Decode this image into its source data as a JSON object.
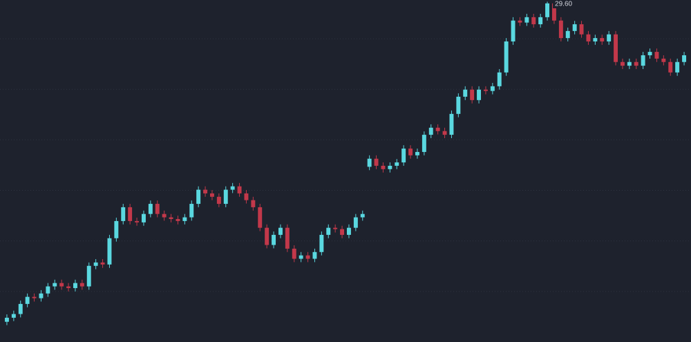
{
  "chart_data": {
    "type": "candlestick",
    "background": "#1e222d",
    "up_color": "#5ad8e0",
    "down_color": "#c2384a",
    "grid": true,
    "grid_color": "#2f3441",
    "ylim": [
      19.5,
      29.65
    ],
    "yticks": [
      21,
      22.5,
      24,
      25.5,
      27,
      28.5
    ],
    "annotation": {
      "value": 29.6,
      "label": "29.60"
    },
    "open": [
      20.1,
      20.22,
      20.33,
      20.63,
      20.84,
      20.8,
      20.94,
      21.15,
      21.25,
      21.15,
      21.1,
      21.25,
      21.15,
      21.76,
      21.86,
      21.8,
      22.58,
      23.09,
      23.5,
      23.09,
      23.05,
      23.3,
      23.6,
      23.3,
      23.2,
      23.15,
      23.09,
      23.2,
      23.6,
      24.02,
      23.91,
      23.81,
      23.6,
      24.02,
      24.12,
      23.91,
      23.71,
      23.5,
      22.89,
      22.38,
      22.68,
      22.89,
      22.27,
      21.97,
      22.07,
      21.97,
      22.17,
      22.68,
      22.89,
      22.85,
      22.68,
      22.89,
      23.2,
      24.7,
      24.94,
      24.73,
      24.63,
      24.73,
      24.83,
      25.24,
      25.04,
      25.14,
      25.65,
      25.86,
      25.76,
      25.65,
      26.27,
      26.78,
      26.99,
      26.68,
      26.99,
      26.95,
      27.09,
      27.5,
      28.42,
      29.04,
      28.98,
      29.14,
      28.93,
      29.14,
      29.55,
      29.04,
      28.52,
      28.73,
      28.93,
      28.63,
      28.42,
      28.52,
      28.42,
      28.63,
      27.81,
      27.7,
      27.81,
      27.7,
      28.01,
      28.11,
      27.91,
      27.81,
      27.5,
      27.81
    ],
    "high": [
      20.32,
      20.43,
      20.73,
      20.94,
      20.94,
      21.04,
      21.25,
      21.35,
      21.35,
      21.25,
      21.35,
      21.35,
      21.86,
      21.96,
      21.96,
      22.68,
      23.19,
      23.6,
      23.6,
      23.19,
      23.4,
      23.7,
      23.7,
      23.4,
      23.3,
      23.25,
      23.3,
      23.7,
      24.12,
      24.12,
      24.01,
      23.91,
      24.12,
      24.22,
      24.22,
      24.01,
      23.81,
      23.6,
      22.99,
      22.78,
      22.99,
      22.99,
      22.37,
      22.17,
      22.17,
      22.27,
      22.78,
      22.99,
      22.99,
      22.95,
      22.99,
      23.3,
      23.4,
      25.04,
      25.04,
      24.83,
      24.83,
      24.93,
      25.34,
      25.34,
      25.24,
      25.75,
      25.96,
      25.96,
      25.86,
      26.37,
      26.88,
      27.09,
      27.09,
      27.09,
      27.09,
      27.19,
      27.6,
      28.52,
      29.14,
      29.14,
      29.24,
      29.24,
      29.24,
      29.6,
      29.58,
      29.14,
      28.83,
      29.03,
      29.03,
      28.73,
      28.62,
      28.62,
      28.73,
      28.73,
      27.91,
      27.91,
      27.91,
      28.11,
      28.21,
      28.21,
      28.01,
      27.91,
      27.91,
      28.11
    ],
    "low": [
      20.0,
      20.12,
      20.23,
      20.53,
      20.7,
      20.7,
      20.84,
      21.05,
      21.05,
      21.0,
      21.0,
      21.05,
      21.05,
      21.66,
      21.7,
      21.7,
      22.48,
      22.99,
      22.99,
      22.95,
      22.95,
      23.2,
      23.2,
      23.1,
      23.05,
      22.99,
      22.99,
      23.1,
      23.5,
      23.81,
      23.71,
      23.5,
      23.5,
      23.92,
      23.81,
      23.61,
      23.4,
      22.79,
      22.28,
      22.28,
      22.58,
      22.17,
      21.87,
      21.87,
      21.87,
      21.87,
      22.07,
      22.58,
      22.75,
      22.58,
      22.58,
      22.79,
      23.1,
      24.6,
      24.63,
      24.53,
      24.53,
      24.63,
      24.73,
      24.94,
      24.94,
      25.04,
      25.55,
      25.66,
      25.55,
      25.55,
      26.17,
      26.68,
      26.58,
      26.58,
      26.85,
      26.85,
      26.99,
      27.4,
      28.32,
      28.88,
      28.88,
      28.83,
      28.83,
      29.04,
      28.94,
      28.42,
      28.42,
      28.63,
      28.53,
      28.32,
      28.32,
      28.32,
      28.32,
      27.71,
      27.6,
      27.6,
      27.6,
      27.6,
      27.91,
      27.81,
      27.71,
      27.4,
      27.4,
      27.71
    ],
    "close": [
      20.22,
      20.33,
      20.63,
      20.84,
      20.8,
      20.94,
      21.15,
      21.25,
      21.15,
      21.1,
      21.25,
      21.15,
      21.76,
      21.86,
      21.8,
      22.58,
      23.09,
      23.5,
      23.09,
      23.05,
      23.3,
      23.6,
      23.3,
      23.2,
      23.15,
      23.09,
      23.2,
      23.6,
      24.02,
      23.91,
      23.81,
      23.6,
      24.02,
      24.12,
      23.91,
      23.71,
      23.5,
      22.89,
      22.38,
      22.68,
      22.89,
      22.27,
      21.97,
      22.07,
      21.97,
      22.17,
      22.68,
      22.89,
      22.85,
      22.68,
      22.89,
      23.2,
      23.3,
      24.94,
      24.73,
      24.63,
      24.73,
      24.83,
      25.24,
      25.04,
      25.14,
      25.65,
      25.86,
      25.76,
      25.65,
      26.27,
      26.78,
      26.99,
      26.68,
      26.99,
      26.95,
      27.09,
      27.5,
      28.42,
      29.04,
      28.98,
      29.14,
      28.93,
      29.14,
      29.55,
      29.04,
      28.52,
      28.73,
      28.93,
      28.63,
      28.42,
      28.52,
      28.42,
      28.63,
      27.81,
      27.7,
      27.81,
      27.7,
      28.01,
      28.11,
      27.91,
      27.81,
      27.5,
      27.81,
      28.01
    ]
  }
}
